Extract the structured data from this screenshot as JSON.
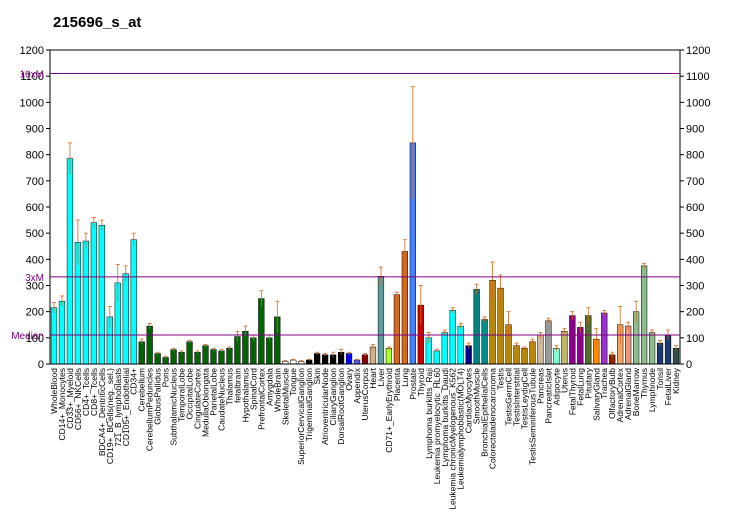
{
  "chart_data": {
    "type": "bar",
    "title": "215696_s_at",
    "xlabel": "",
    "ylabel": "",
    "ylim": [
      0,
      1200
    ],
    "y_ticks": [
      0,
      100,
      200,
      300,
      400,
      500,
      600,
      700,
      800,
      900,
      1000,
      1100,
      1200
    ],
    "grid": false,
    "legend": "none",
    "reference_lines": [
      {
        "label": "10xM",
        "value": 1110,
        "color": "#800080"
      },
      {
        "label": "3xM",
        "value": 333,
        "color": "#800080"
      },
      {
        "label": "Median",
        "value": 111,
        "color": "#800080"
      }
    ],
    "categories": [
      "WholeBlood",
      "CD14+_Monocytes",
      "CD33+_Myeloid",
      "CD56+_NKCells",
      "CD4+_Tcells",
      "CD8+_Tcells",
      "BDCA4+_DentriticCells",
      "CD19+_BCells(neg._sel.)",
      "721_B_lymphoblasts",
      "CD105+_Endothelial",
      "CD34+",
      "Cerebellum",
      "CerebellumPeduncles",
      "GlobusPallidus",
      "Pons",
      "SubthalamicNucleus",
      "TemporalLobe",
      "OccipitalLobe",
      "CingulateCortex",
      "MedullaOblongata",
      "ParietalLobe",
      "CaudateNucleus",
      "Thalamus",
      "fetalbrain",
      "Hypothalamus",
      "SpinalCord",
      "PrefrontalCortex",
      "Amygdala",
      "WholeBrain",
      "SkeletalMuscle",
      "Tongue",
      "SuperiorCervicalGanglion",
      "TrigeminalGanglion",
      "Skin",
      "AtrioventricularNode",
      "CiliaryGanglion",
      "DorsalRootGanglion",
      "Ovary",
      "Appendix",
      "UterusCorpus",
      "Heart",
      "Liver",
      "CD71+_EarlyErythroid",
      "Placenta",
      "Lung",
      "Prostate",
      "Thyroid",
      "Lymphoma burkitts_Raji",
      "Leukemia promyelocytic_HL60",
      "Lymphoma burkitts_Daudi",
      "Leukemia chronicMyelogenous_K562",
      "Leukemialymphoblastic(MOLT4)",
      "CardiacMyocytes",
      "SmoothMuscle",
      "BronchialEpithelialCells",
      "Colorectaladenocarcinoma",
      "Testis",
      "TestisGermCell",
      "TestisInterstitial",
      "TestisLeydigCell",
      "TestisSeminiferousTubule",
      "Pancreas",
      "PancreaticIslet",
      "Adipocyte",
      "Uterus",
      "FetalThyroid",
      "FetalLung",
      "Pituitary",
      "SalivaryGland",
      "Trachea",
      "OlfactoryBulb",
      "AdrenalCortex",
      "AdrenalGland",
      "BoneMarrow",
      "Thymus",
      "Lymphnode",
      "Tonsil",
      "FetalLiver",
      "Kidney"
    ],
    "values": [
      215,
      240,
      785,
      465,
      470,
      540,
      530,
      180,
      310,
      345,
      475,
      85,
      145,
      40,
      25,
      55,
      45,
      85,
      45,
      70,
      55,
      50,
      60,
      105,
      125,
      100,
      250,
      100,
      180,
      10,
      15,
      10,
      15,
      40,
      35,
      35,
      45,
      40,
      15,
      35,
      65,
      335,
      60,
      265,
      430,
      845,
      225,
      100,
      50,
      120,
      205,
      145,
      70,
      285,
      170,
      320,
      290,
      150,
      70,
      60,
      85,
      110,
      165,
      60,
      125,
      185,
      140,
      185,
      95,
      195,
      35,
      150,
      145,
      200,
      375,
      120,
      80,
      110,
      60
    ],
    "errors": [
      20,
      20,
      60,
      85,
      30,
      20,
      20,
      40,
      70,
      30,
      25,
      10,
      10,
      5,
      5,
      5,
      5,
      5,
      5,
      5,
      5,
      5,
      5,
      20,
      20,
      10,
      30,
      10,
      60,
      3,
      3,
      3,
      3,
      5,
      5,
      10,
      10,
      5,
      3,
      5,
      10,
      35,
      5,
      10,
      45,
      215,
      75,
      20,
      5,
      10,
      10,
      10,
      10,
      20,
      10,
      70,
      50,
      50,
      10,
      5,
      10,
      10,
      10,
      10,
      10,
      15,
      20,
      30,
      40,
      10,
      10,
      70,
      15,
      40,
      10,
      10,
      10,
      20,
      10
    ],
    "colors": [
      "#00ffff",
      "#00ffff",
      "#00ffff",
      "#00ffff",
      "#00ffff",
      "#00ffff",
      "#00ffff",
      "#00ffff",
      "#00ffff",
      "#00ffff",
      "#00ffff",
      "#006400",
      "#006400",
      "#006400",
      "#006400",
      "#006400",
      "#006400",
      "#006400",
      "#006400",
      "#006400",
      "#006400",
      "#006400",
      "#006400",
      "#006400",
      "#006400",
      "#006400",
      "#006400",
      "#006400",
      "#006400",
      "#ffffff",
      "#ffffff",
      "#ffffff",
      "#000000",
      "#000000",
      "#000000",
      "#000000",
      "#000000",
      "#0000ff",
      "#5a5aff",
      "#8b0000",
      "#d2b48c",
      "#5f9ea0",
      "#adff2f",
      "#d2691e",
      "#d2691e",
      "#4682ff",
      "#cd0000",
      "#00ffff",
      "#00ffff",
      "#00ffff",
      "#00ffff",
      "#00ffff",
      "#000080",
      "#008080",
      "#008b8b",
      "#b8860b",
      "#b8860b",
      "#b8860b",
      "#b8860b",
      "#b8860b",
      "#b8860b",
      "#cdb79e",
      "#999999",
      "#7fffd4",
      "#bdb76b",
      "#8b008b",
      "#8b008b",
      "#556b2f",
      "#ff8c00",
      "#9932cc",
      "#8b2500",
      "#f4a460",
      "#e9967a",
      "#8fbc8f",
      "#8fbc8f",
      "#8fbc8f",
      "#1c3a6e",
      "#1c3a6e",
      "#2f4f4f"
    ]
  }
}
